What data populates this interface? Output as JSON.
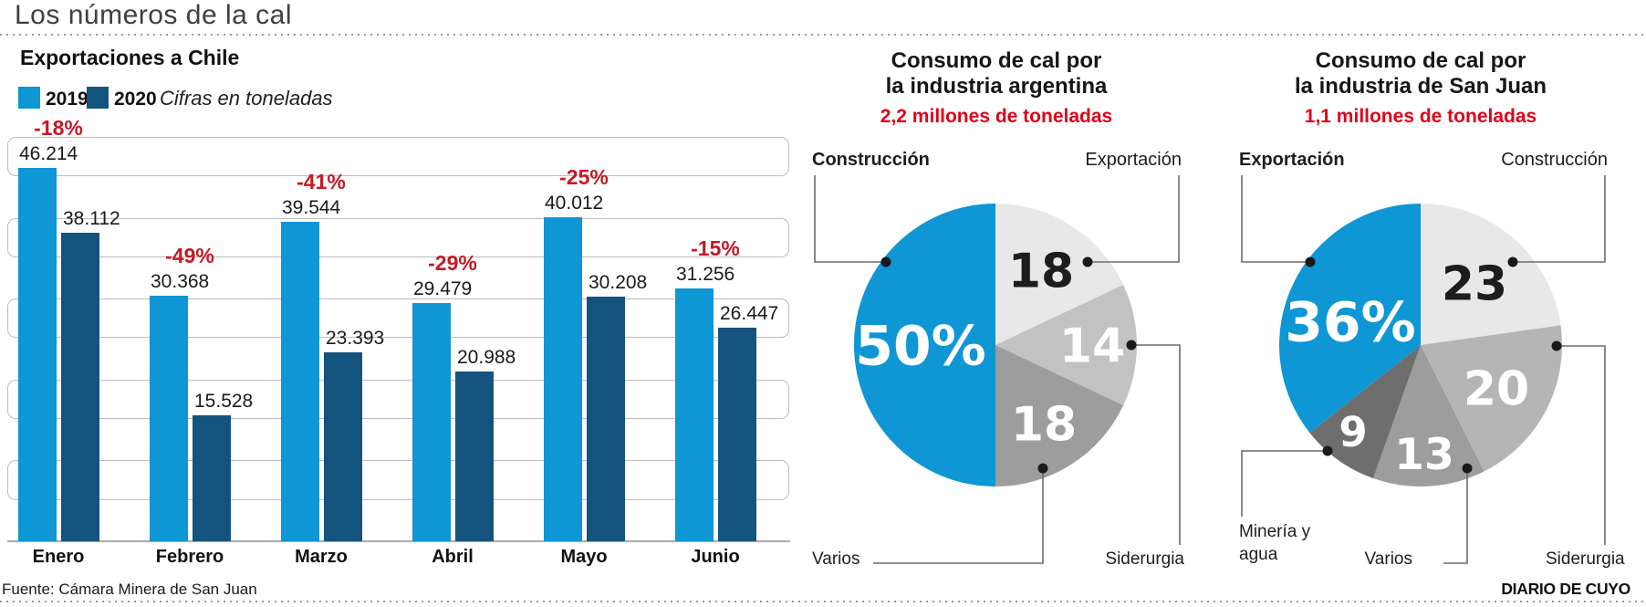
{
  "page": {
    "title": "Los números de la cal",
    "source": "Fuente: Cámara Minera de San Juan",
    "credit": "DIARIO DE CUYO"
  },
  "colors": {
    "blue_2019": "#0e96d5",
    "blue_2020": "#15537f",
    "pct_red": "#c51926",
    "subtitle_red": "#e00019"
  },
  "chart_data": [
    {
      "type": "bar",
      "title": "Exportaciones a Chile",
      "units_note": "Cifras en toneladas",
      "categories": [
        "Enero",
        "Febrero",
        "Marzo",
        "Abril",
        "Mayo",
        "Junio"
      ],
      "series": [
        {
          "name": "2019",
          "color": "#0e96d5",
          "values": [
            46214,
            30368,
            39544,
            29479,
            40012,
            31256
          ],
          "value_labels": [
            "46.214",
            "30.368",
            "39.544",
            "29.479",
            "40.012",
            "31.256"
          ]
        },
        {
          "name": "2020",
          "color": "#15537f",
          "values": [
            38112,
            15528,
            23393,
            20988,
            30208,
            26447
          ],
          "value_labels": [
            "38.112",
            "15.528",
            "23.393",
            "20.988",
            "30.208",
            "26.447"
          ]
        }
      ],
      "pct_change_labels": [
        "-18%",
        "-49%",
        "-41%",
        "-29%",
        "-25%",
        "-15%"
      ],
      "ylim": [
        0,
        50000
      ],
      "grid": "horizontal rounded bands every 5000, no tick labels",
      "legend_position": "top-left"
    },
    {
      "type": "pie",
      "title_lines": [
        "Consumo de cal por",
        "la industria argentina"
      ],
      "subtitle": "2,2 millones de toneladas",
      "start": "12 o'clock, clockwise",
      "slices": [
        {
          "label": "Exportación",
          "value": 18,
          "display": "18",
          "color": "#e8e8e8",
          "text_color": "#1d1d1b"
        },
        {
          "label": "Siderurgia",
          "value": 14,
          "display": "14",
          "color": "#c2c2c2",
          "text_color": "#ffffff"
        },
        {
          "label": "Varios",
          "value": 18,
          "display": "18",
          "color": "#9d9d9d",
          "text_color": "#ffffff"
        },
        {
          "label": "Construcción",
          "value": 50,
          "display": "50%",
          "color": "#0e96d5",
          "text_color": "#ffffff"
        }
      ],
      "callouts": {
        "top_left": "Construcción",
        "top_right": "Exportación",
        "bottom_left": "Varios",
        "bottom_right": "Siderurgia"
      }
    },
    {
      "type": "pie",
      "title_lines": [
        "Consumo de cal por",
        "la industria de San Juan"
      ],
      "subtitle": "1,1 millones de toneladas",
      "start": "12 o'clock, clockwise",
      "slices": [
        {
          "label": "Construcción",
          "value": 23,
          "display": "23",
          "color": "#e8e8e8",
          "text_color": "#1d1d1b"
        },
        {
          "label": "Siderurgia",
          "value": 20,
          "display": "20",
          "color": "#b5b5b5",
          "text_color": "#ffffff"
        },
        {
          "label": "Varios",
          "value": 13,
          "display": "13",
          "color": "#9d9d9d",
          "text_color": "#ffffff"
        },
        {
          "label": "Minería y agua",
          "value": 9,
          "display": "9",
          "color": "#6e6e6e",
          "text_color": "#ffffff"
        },
        {
          "label": "Exportación",
          "value": 36,
          "display": "36%",
          "color": "#0e96d5",
          "text_color": "#ffffff"
        }
      ],
      "callouts": {
        "top_left": "Exportación",
        "top_right": "Construcción",
        "bottom_left": "Minería y agua",
        "bottom_center": "Varios",
        "bottom_right": "Siderurgia"
      }
    }
  ]
}
